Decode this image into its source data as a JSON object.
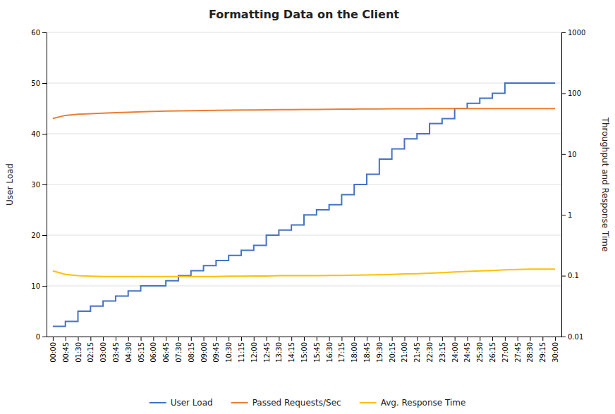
{
  "chart_data": {
    "type": "line",
    "title": "Formatting Data on the Client",
    "ylabel": "User Load",
    "y2label": "Throughput and Response Time",
    "categories": [
      "00:00",
      "00:45",
      "01:30",
      "02:15",
      "03:00",
      "03:45",
      "04:30",
      "05:15",
      "06:00",
      "06:45",
      "07:30",
      "08:15",
      "09:00",
      "09:45",
      "10:30",
      "11:15",
      "12:00",
      "12:45",
      "13:30",
      "14:15",
      "15:00",
      "15:45",
      "16:30",
      "17:15",
      "18:00",
      "18:45",
      "19:30",
      "20:15",
      "21:00",
      "21:45",
      "22:30",
      "23:15",
      "24:00",
      "24:45",
      "25:30",
      "26:15",
      "27:00",
      "27:45",
      "28:30",
      "29:15",
      "30:00"
    ],
    "series": [
      {
        "name": "User Load",
        "color": "#4472C4",
        "line_style": "step",
        "values": [
          2,
          3,
          5,
          6,
          7,
          8,
          9,
          10,
          10,
          11,
          12,
          13,
          14,
          15,
          16,
          17,
          18,
          20,
          21,
          22,
          24,
          25,
          26,
          28,
          30,
          32,
          35,
          37,
          39,
          40,
          42,
          43,
          45,
          46,
          47,
          48,
          50,
          50,
          50,
          50,
          50
        ]
      },
      {
        "name": "Passed Requests/Sec",
        "color": "#ED7D31",
        "axis": "y2",
        "line_style": "solid",
        "values": [
          38.5,
          43.2,
          45.0,
          46.0,
          47.0,
          47.8,
          48.5,
          49.5,
          50.2,
          50.8,
          51.2,
          51.5,
          51.8,
          52.2,
          52.5,
          52.8,
          53.0,
          53.2,
          53.5,
          53.8,
          54.0,
          54.2,
          54.5,
          54.7,
          54.9,
          55.1,
          55.2,
          55.4,
          55.5,
          55.6,
          55.7,
          55.8,
          55.9,
          55.9,
          56.0,
          56.0,
          56.0,
          56.0,
          56.0,
          56.0,
          56.0
        ]
      },
      {
        "name": "Avg. Response Time",
        "color": "#FFC000",
        "axis": "y2",
        "line_style": "solid",
        "values": [
          0.12,
          0.105,
          0.1,
          0.098,
          0.097,
          0.097,
          0.097,
          0.097,
          0.097,
          0.097,
          0.097,
          0.097,
          0.097,
          0.097,
          0.098,
          0.098,
          0.099,
          0.099,
          0.1,
          0.1,
          0.1,
          0.1,
          0.101,
          0.101,
          0.102,
          0.103,
          0.104,
          0.105,
          0.107,
          0.108,
          0.11,
          0.112,
          0.115,
          0.118,
          0.12,
          0.122,
          0.125,
          0.127,
          0.128,
          0.128,
          0.128
        ]
      }
    ],
    "ylim": [
      0,
      60
    ],
    "yticks": [
      0,
      10,
      20,
      30,
      40,
      50,
      60
    ],
    "y2lim": [
      0.01,
      1000
    ],
    "y2ticks": [
      0.01,
      0.1,
      1,
      10,
      100,
      1000
    ],
    "log": "y2",
    "grid": true,
    "legend": "bottom"
  }
}
